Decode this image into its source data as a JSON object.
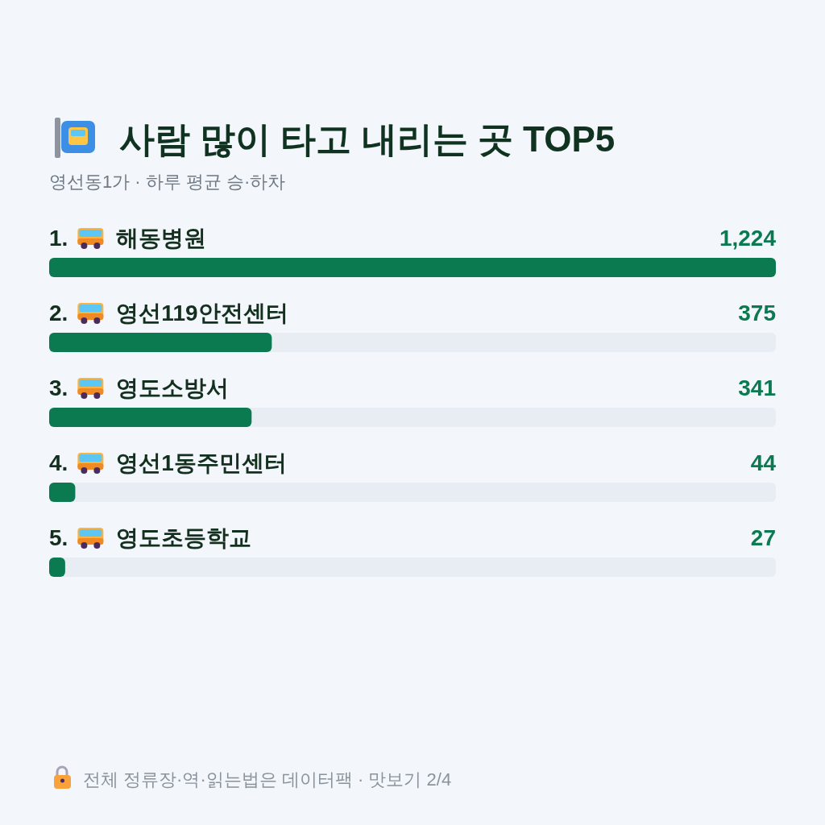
{
  "chart_data": {
    "type": "bar",
    "orientation": "horizontal",
    "title": "사람 많이 타고 내리는 곳 TOP5",
    "subtitle": "영선동1가 · 하루 평균 승·하차",
    "categories": [
      "1. 해동병원",
      "2. 영선119안전센터",
      "3. 영도소방서",
      "4. 영선1동주민센터",
      "5. 영도초등학교"
    ],
    "values": [
      1224,
      375,
      341,
      44,
      27
    ],
    "value_labels": [
      "1,224",
      "375",
      "341",
      "44",
      "27"
    ],
    "color": "#0b7a50",
    "xlim": [
      0,
      1224
    ],
    "tick_labels": "y",
    "annotations": [
      "전체 정류장·역·읽는법은 데이터팩 · 맛보기 2/4"
    ]
  }
}
